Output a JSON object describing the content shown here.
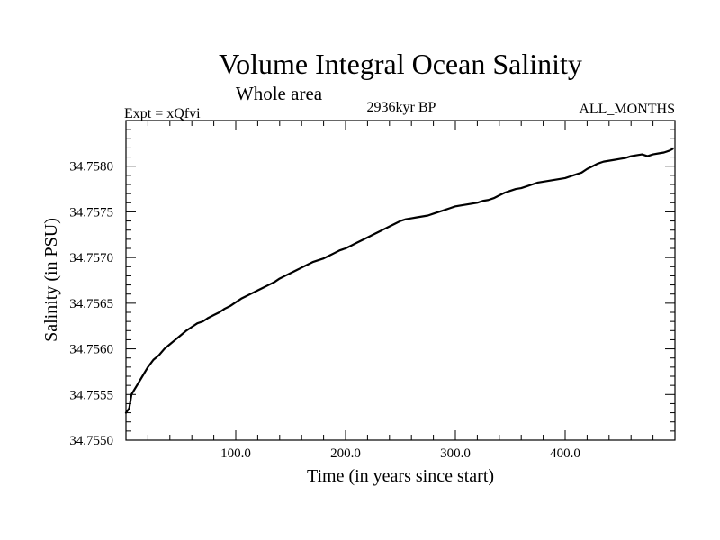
{
  "colors": {
    "line": "#000000",
    "background": "#ffffff"
  },
  "chart_data": {
    "type": "line",
    "title": "Volume Integral Ocean Salinity",
    "subtitle": "Whole area",
    "left_label": "Expt = xQfvi",
    "center_label": "2936kyr BP",
    "right_label": "ALL_MONTHS",
    "xlabel": "Time (in years since start)",
    "ylabel": "Salinity (in PSU)",
    "xlim": [
      0,
      500
    ],
    "ylim": [
      34.755,
      34.7585
    ],
    "x_ticks": [
      100,
      200,
      300,
      400
    ],
    "x_tick_labels": [
      "100.0",
      "200.0",
      "300.0",
      "400.0"
    ],
    "y_ticks": [
      34.755,
      34.7555,
      34.756,
      34.7565,
      34.757,
      34.7575,
      34.758
    ],
    "y_tick_labels": [
      "34.7550",
      "34.7555",
      "34.7560",
      "34.7565",
      "34.7570",
      "34.7575",
      "34.7580"
    ],
    "series": [
      {
        "name": "Volume Integral Ocean Salinity",
        "x": [
          0,
          3,
          5,
          8,
          10,
          15,
          20,
          25,
          30,
          35,
          40,
          45,
          50,
          55,
          60,
          65,
          70,
          75,
          80,
          85,
          90,
          95,
          100,
          105,
          110,
          115,
          120,
          125,
          130,
          135,
          140,
          145,
          150,
          155,
          160,
          165,
          170,
          175,
          180,
          185,
          190,
          195,
          200,
          205,
          210,
          215,
          220,
          225,
          230,
          235,
          240,
          245,
          250,
          255,
          260,
          265,
          270,
          275,
          280,
          285,
          290,
          295,
          300,
          305,
          310,
          315,
          320,
          325,
          330,
          335,
          340,
          345,
          350,
          355,
          360,
          365,
          370,
          375,
          380,
          385,
          390,
          395,
          400,
          405,
          410,
          415,
          420,
          425,
          430,
          435,
          440,
          445,
          450,
          455,
          460,
          465,
          470,
          475,
          480,
          485,
          490,
          495,
          498
        ],
        "values": [
          34.7553,
          34.75535,
          34.7555,
          34.75556,
          34.7556,
          34.7557,
          34.7558,
          34.75588,
          34.75593,
          34.756,
          34.75605,
          34.7561,
          34.75615,
          34.7562,
          34.75624,
          34.75628,
          34.7563,
          34.75634,
          34.75637,
          34.7564,
          34.75644,
          34.75647,
          34.75651,
          34.75655,
          34.75658,
          34.75661,
          34.75664,
          34.75667,
          34.7567,
          34.75673,
          34.75677,
          34.7568,
          34.75683,
          34.75686,
          34.75689,
          34.75692,
          34.75695,
          34.75697,
          34.75699,
          34.75702,
          34.75705,
          34.75708,
          34.7571,
          34.75713,
          34.75716,
          34.75719,
          34.75722,
          34.75725,
          34.75728,
          34.75731,
          34.75734,
          34.75737,
          34.7574,
          34.75742,
          34.75743,
          34.75744,
          34.75745,
          34.75746,
          34.75748,
          34.7575,
          34.75752,
          34.75754,
          34.75756,
          34.75757,
          34.75758,
          34.75759,
          34.7576,
          34.75762,
          34.75763,
          34.75765,
          34.75768,
          34.75771,
          34.75773,
          34.75775,
          34.75776,
          34.75778,
          34.7578,
          34.75782,
          34.75783,
          34.75784,
          34.75785,
          34.75786,
          34.75787,
          34.75789,
          34.75791,
          34.75793,
          34.75797,
          34.758,
          34.75803,
          34.75805,
          34.75806,
          34.75807,
          34.75808,
          34.75809,
          34.75811,
          34.75812,
          34.75813,
          34.75811,
          34.75813,
          34.75814,
          34.75815,
          34.75817,
          34.75819
        ]
      }
    ]
  }
}
